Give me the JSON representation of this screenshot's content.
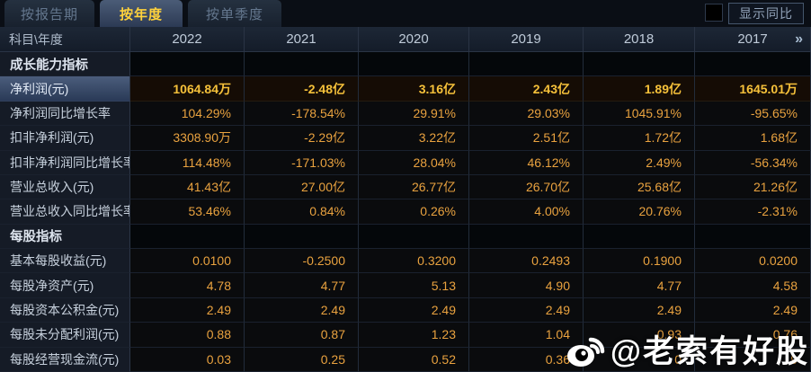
{
  "tabs": [
    {
      "label": "按报告期",
      "active": false
    },
    {
      "label": "按年度",
      "active": true
    },
    {
      "label": "按单季度",
      "active": false
    }
  ],
  "controls": {
    "show_yoy_label": "显示同比",
    "checkbox_checked": false
  },
  "table": {
    "corner_label": "科目\\年度",
    "years": [
      "2022",
      "2021",
      "2020",
      "2019",
      "2018",
      "2017"
    ],
    "more_icon": "»",
    "rows": [
      {
        "type": "section",
        "label": "成长能力指标",
        "values": [
          "",
          "",
          "",
          "",
          "",
          ""
        ]
      },
      {
        "type": "data",
        "highlight": true,
        "label": "净利润(元)",
        "values": [
          "1064.84万",
          "-2.48亿",
          "3.16亿",
          "2.43亿",
          "1.89亿",
          "1645.01万"
        ]
      },
      {
        "type": "data",
        "label": "净利润同比增长率",
        "values": [
          "104.29%",
          "-178.54%",
          "29.91%",
          "29.03%",
          "1045.91%",
          "-95.65%"
        ]
      },
      {
        "type": "data",
        "label": "扣非净利润(元)",
        "values": [
          "3308.90万",
          "-2.29亿",
          "3.22亿",
          "2.51亿",
          "1.72亿",
          "1.68亿"
        ]
      },
      {
        "type": "data",
        "label": "扣非净利润同比增长率",
        "values": [
          "114.48%",
          "-171.03%",
          "28.04%",
          "46.12%",
          "2.49%",
          "-56.34%"
        ]
      },
      {
        "type": "data",
        "label": "营业总收入(元)",
        "values": [
          "41.43亿",
          "27.00亿",
          "26.77亿",
          "26.70亿",
          "25.68亿",
          "21.26亿"
        ]
      },
      {
        "type": "data",
        "label": "营业总收入同比增长率",
        "values": [
          "53.46%",
          "0.84%",
          "0.26%",
          "4.00%",
          "20.76%",
          "-2.31%"
        ]
      },
      {
        "type": "section",
        "label": "每股指标",
        "values": [
          "",
          "",
          "",
          "",
          "",
          ""
        ]
      },
      {
        "type": "data",
        "label": "基本每股收益(元)",
        "values": [
          "0.0100",
          "-0.2500",
          "0.3200",
          "0.2493",
          "0.1900",
          "0.0200"
        ]
      },
      {
        "type": "data",
        "label": "每股净资产(元)",
        "values": [
          "4.78",
          "4.77",
          "5.13",
          "4.90",
          "4.77",
          "4.58"
        ]
      },
      {
        "type": "data",
        "label": "每股资本公积金(元)",
        "values": [
          "2.49",
          "2.49",
          "2.49",
          "2.49",
          "2.49",
          "2.49"
        ]
      },
      {
        "type": "data",
        "label": "每股未分配利润(元)",
        "values": [
          "0.88",
          "0.87",
          "1.23",
          "1.04",
          "0.93",
          "0.76"
        ]
      },
      {
        "type": "data",
        "label": "每股经营现金流(元)",
        "values": [
          "0.03",
          "0.25",
          "0.52",
          "0.36",
          "0",
          "9"
        ]
      }
    ]
  },
  "watermark": {
    "text": "@老索有好股",
    "icon": "weibo-icon"
  },
  "colors": {
    "value_orange": "#e9a23f",
    "highlight_gold": "#f6c13a",
    "tab_active_text": "#ffd23c",
    "header_text": "#bfcbd9",
    "label_bg": "#151b26"
  }
}
